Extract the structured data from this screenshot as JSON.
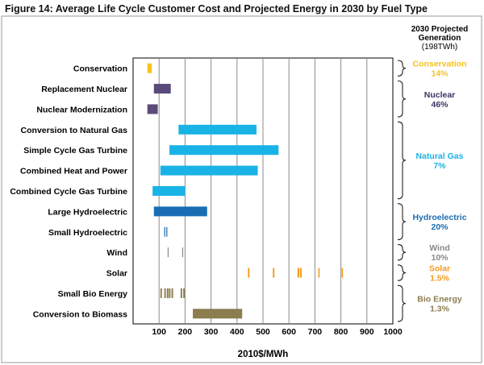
{
  "figure_title": "Figure 14: Average Life Cycle Customer Cost and Projected Energy in 2030 by Fuel Type",
  "colors": {
    "conservation": "#f7c21b",
    "nuclear": "#5a4a7a",
    "natural_gas": "#19b3e6",
    "hydro_large": "#1a6db3",
    "hydro_small": "#1a6db3",
    "wind": "#8a8a8a",
    "solar": "#f59a1e",
    "bio": "#8c7d4f"
  },
  "chart_data": {
    "type": "bar",
    "orientation": "horizontal-range",
    "title": "Figure 14: Average Life Cycle Customer Cost and Projected Energy in 2030 by Fuel Type",
    "xlabel": "2010$/MWh",
    "ylabel": "",
    "xlim": [
      0,
      1000
    ],
    "xticks": [
      100,
      200,
      300,
      400,
      500,
      600,
      700,
      800,
      900,
      1000
    ],
    "grid": "vertical",
    "categories": [
      "Conservation",
      "Replacement Nuclear",
      "Nuclear Modernization",
      "Conversion to Natural Gas",
      "Simple Cycle Gas Turbine",
      "Combined Heat and Power",
      "Combined Cycle Gas Turbine",
      "Large Hydroelectric",
      "Small Hydroelectric",
      "Wind",
      "Solar",
      "Small Bio Energy",
      "Conversion to Biomass"
    ],
    "ranges": [
      {
        "category": "Conservation",
        "group": "conservation",
        "bars": [
          [
            55,
            72
          ]
        ]
      },
      {
        "category": "Replacement Nuclear",
        "group": "nuclear",
        "bars": [
          [
            80,
            145
          ]
        ]
      },
      {
        "category": "Nuclear Modernization",
        "group": "nuclear",
        "bars": [
          [
            55,
            95
          ]
        ]
      },
      {
        "category": "Conversion to Natural Gas",
        "group": "natural_gas",
        "bars": [
          [
            175,
            475
          ]
        ]
      },
      {
        "category": "Simple Cycle Gas Turbine",
        "group": "natural_gas",
        "bars": [
          [
            140,
            560
          ]
        ]
      },
      {
        "category": "Combined Heat and Power",
        "group": "natural_gas",
        "bars": [
          [
            105,
            480
          ]
        ]
      },
      {
        "category": "Combined Cycle Gas Turbine",
        "group": "natural_gas",
        "bars": [
          [
            75,
            200
          ]
        ]
      },
      {
        "category": "Large Hydroelectric",
        "group": "hydro_large",
        "bars": [
          [
            80,
            285
          ]
        ]
      },
      {
        "category": "Small Hydroelectric",
        "group": "hydro_small",
        "bars": [
          [
            120,
            123
          ],
          [
            128,
            131
          ]
        ]
      },
      {
        "category": "Wind",
        "group": "wind",
        "bars": [
          [
            133,
            136
          ],
          [
            189,
            192
          ]
        ]
      },
      {
        "category": "Solar",
        "group": "solar",
        "bars": [
          [
            442,
            448
          ],
          [
            538,
            544
          ],
          [
            633,
            640
          ],
          [
            643,
            649
          ],
          [
            713,
            718
          ],
          [
            803,
            808
          ]
        ]
      },
      {
        "category": "Small Bio Energy",
        "group": "bio",
        "bars": [
          [
            105,
            111
          ],
          [
            120,
            126
          ],
          [
            130,
            136
          ],
          [
            138,
            144
          ],
          [
            148,
            154
          ],
          [
            183,
            189
          ],
          [
            193,
            199
          ]
        ]
      },
      {
        "category": "Conversion to Biomass",
        "group": "bio",
        "bars": [
          [
            230,
            420
          ]
        ]
      }
    ],
    "projected_generation": {
      "header": [
        "2030 Projected",
        "Generation"
      ],
      "subheader": "(198TWh)",
      "groups": [
        {
          "name": "Conservation",
          "share": "14%",
          "color": "#f7c21b",
          "name_color": "#f7c21b",
          "rows": [
            0,
            0
          ]
        },
        {
          "name": "Nuclear",
          "share": "46%",
          "color": "#3d3360",
          "name_color": "#3d3360",
          "rows": [
            1,
            2
          ]
        },
        {
          "name": "Natural Gas",
          "share": "7%",
          "color": "#19b3e6",
          "name_color": "#19b3e6",
          "rows": [
            3,
            6
          ]
        },
        {
          "name": "Hydroelectric",
          "share": "20%",
          "color": "#1a6db3",
          "name_color": "#1a6db3",
          "rows": [
            7,
            8
          ]
        },
        {
          "name": "Wind",
          "share": "10%",
          "color": "#8a8a8a",
          "name_color": "#8a8a8a",
          "rows": [
            9,
            9
          ]
        },
        {
          "name": "Solar",
          "share": "1.5%",
          "color": "#f59a1e",
          "name_color": "#f59a1e",
          "rows": [
            10,
            10
          ]
        },
        {
          "name": "Bio Energy",
          "share": "1.3%",
          "color": "#8c7d4f",
          "name_color": "#8c7d4f",
          "rows": [
            11,
            12
          ]
        }
      ]
    }
  }
}
